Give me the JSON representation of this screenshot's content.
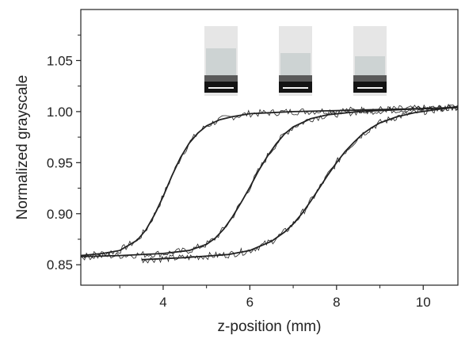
{
  "chart_data": {
    "type": "line",
    "title": "",
    "xlabel": "z-position (mm)",
    "ylabel": "Normalized grayscale",
    "xlim": [
      2.1,
      10.8
    ],
    "ylim": [
      0.83,
      1.1
    ],
    "x_ticks": [
      4,
      6,
      8,
      10
    ],
    "x_tick_labels": [
      "4",
      "6",
      "8",
      "10"
    ],
    "y_ticks": [
      0.85,
      0.9,
      0.95,
      1.0,
      1.05
    ],
    "y_tick_labels": [
      "0.85",
      "0.90",
      "0.95",
      "1.00",
      "1.05"
    ],
    "grid": false,
    "legend": "none",
    "line_color": "#222222",
    "curves": [
      {
        "x": [
          2.1,
          2.6,
          3.0,
          3.4,
          3.6,
          3.8,
          4.0,
          4.2,
          4.4,
          4.6,
          4.8,
          5.0,
          5.3,
          5.6,
          6.0,
          6.5,
          7.0,
          8.0,
          9.0,
          10.0,
          10.8
        ],
        "y": [
          0.859,
          0.861,
          0.864,
          0.874,
          0.884,
          0.899,
          0.917,
          0.937,
          0.955,
          0.969,
          0.979,
          0.986,
          0.992,
          0.995,
          0.998,
          0.999,
          1.0,
          1.001,
          1.002,
          1.003,
          1.004
        ]
      },
      {
        "x": [
          2.1,
          3.0,
          4.0,
          4.6,
          5.0,
          5.2,
          5.4,
          5.6,
          5.8,
          6.0,
          6.2,
          6.4,
          6.6,
          6.8,
          7.0,
          7.4,
          7.8,
          8.5,
          9.5,
          10.8
        ],
        "y": [
          0.858,
          0.859,
          0.861,
          0.864,
          0.87,
          0.876,
          0.885,
          0.897,
          0.911,
          0.926,
          0.942,
          0.956,
          0.968,
          0.978,
          0.985,
          0.993,
          0.997,
          1.0,
          1.002,
          1.004
        ]
      },
      {
        "x": [
          3.5,
          4.5,
          5.5,
          6.0,
          6.5,
          6.8,
          7.0,
          7.2,
          7.4,
          7.6,
          7.8,
          8.0,
          8.2,
          8.4,
          8.6,
          8.8,
          9.0,
          9.4,
          9.8,
          10.3,
          10.8
        ],
        "y": [
          0.855,
          0.857,
          0.86,
          0.864,
          0.873,
          0.882,
          0.89,
          0.9,
          0.912,
          0.925,
          0.938,
          0.95,
          0.961,
          0.97,
          0.978,
          0.984,
          0.989,
          0.995,
          0.999,
          1.002,
          1.005
        ]
      }
    ]
  },
  "insets": [
    {
      "name": "sample-image-1",
      "top_level": 0.45
    },
    {
      "name": "sample-image-2",
      "top_level": 0.6
    },
    {
      "name": "sample-image-3",
      "top_level": 0.7
    }
  ]
}
